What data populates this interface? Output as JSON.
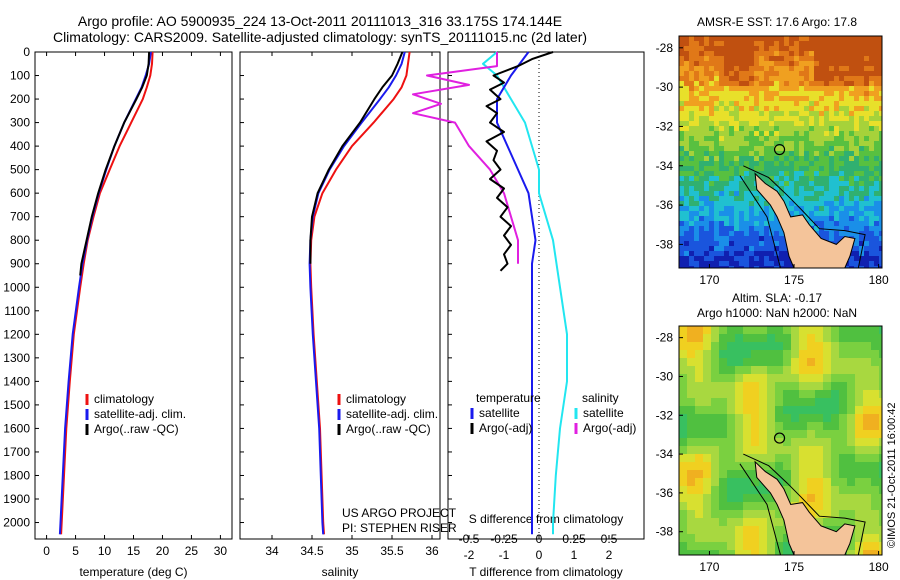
{
  "header": {
    "title_line1": "Argo profile: AO 5900935_224 13-Oct-2011 20111013_316 33.175S 174.144E",
    "title_line2": "Climatology: CARS2009. Satellite-adjusted climatology: synTS_20111015.nc (2d later)"
  },
  "colors": {
    "climatology": "#ee1111",
    "satellite": "#1a1aee",
    "argo": "#000000",
    "satellite_salinity": "#22e6f0",
    "argo_salinity": "#e020e0"
  },
  "chart_data": [
    {
      "type": "line",
      "id": "temperature",
      "xlabel": "temperature (deg C)",
      "ylabel": "",
      "xlim": [
        -2,
        32
      ],
      "ylim": [
        2070,
        0
      ],
      "xticks": [
        0,
        5,
        10,
        15,
        20,
        25,
        30
      ],
      "yticks": [
        0,
        100,
        200,
        300,
        400,
        500,
        600,
        700,
        800,
        900,
        1000,
        1100,
        1200,
        1300,
        1400,
        1500,
        1600,
        1700,
        1800,
        1900,
        2000
      ],
      "legend": [
        "climatology",
        "satellite-adj. clim.",
        "Argo(..raw -QC)"
      ],
      "series": [
        {
          "name": "climatology",
          "color": "#ee1111",
          "depth": [
            0,
            50,
            100,
            150,
            200,
            300,
            400,
            500,
            600,
            700,
            800,
            900,
            1000,
            1200,
            1400,
            1600,
            1800,
            2000,
            2050
          ],
          "values": [
            18.3,
            18.2,
            17.9,
            17.3,
            16.6,
            14.6,
            12.6,
            10.9,
            9.2,
            8.1,
            7.1,
            6.4,
            5.8,
            4.7,
            4.0,
            3.4,
            3.0,
            2.6,
            2.5
          ]
        },
        {
          "name": "satellite-adj. clim.",
          "color": "#1a1aee",
          "depth": [
            0,
            50,
            100,
            150,
            200,
            300,
            400,
            500,
            600,
            700,
            800,
            900,
            1000,
            1200,
            1400,
            1600,
            1800,
            2000,
            2050
          ],
          "values": [
            18.0,
            17.7,
            17.1,
            16.4,
            15.4,
            13.4,
            11.7,
            10.3,
            9.0,
            7.9,
            7.0,
            6.2,
            5.6,
            4.5,
            3.8,
            3.2,
            2.8,
            2.4,
            2.3
          ]
        },
        {
          "name": "Argo(..raw -QC)",
          "color": "#000000",
          "depth": [
            0,
            50,
            100,
            150,
            200,
            300,
            400,
            500,
            600,
            700,
            800,
            900,
            950
          ],
          "values": [
            17.7,
            17.6,
            17.3,
            16.5,
            15.5,
            13.4,
            11.7,
            10.2,
            8.9,
            7.8,
            6.9,
            6.0,
            5.8
          ]
        }
      ]
    },
    {
      "type": "line",
      "id": "salinity",
      "xlabel": "salinity",
      "ylabel": "",
      "xlim": [
        33.6,
        36.1
      ],
      "ylim": [
        2070,
        0
      ],
      "xticks": [
        34,
        34.5,
        35,
        35.5,
        36
      ],
      "xticklabels": [
        "34",
        "34.5",
        "35",
        "35.5",
        "36"
      ],
      "legend": [
        "climatology",
        "satellite-adj. clim.",
        "Argo(..raw -QC)"
      ],
      "annotation": [
        "US ARGO PROJECT",
        "PI: STEPHEN RISER"
      ],
      "series": [
        {
          "name": "climatology",
          "color": "#ee1111",
          "depth": [
            0,
            50,
            100,
            150,
            200,
            300,
            400,
            500,
            600,
            700,
            800,
            900,
            1000,
            1200,
            1400,
            1600,
            1800,
            2000,
            2050
          ],
          "values": [
            35.72,
            35.7,
            35.68,
            35.62,
            35.52,
            35.27,
            35.0,
            34.8,
            34.63,
            34.53,
            34.49,
            34.48,
            34.49,
            34.52,
            34.56,
            34.6,
            34.62,
            34.64,
            34.65
          ]
        },
        {
          "name": "satellite-adj. clim.",
          "color": "#1a1aee",
          "depth": [
            0,
            50,
            100,
            150,
            200,
            300,
            400,
            500,
            600,
            700,
            800,
            900,
            1000,
            1200,
            1400,
            1600,
            1800,
            2000,
            2050
          ],
          "values": [
            35.66,
            35.62,
            35.55,
            35.46,
            35.35,
            35.12,
            34.9,
            34.72,
            34.58,
            34.51,
            34.48,
            34.47,
            34.48,
            34.51,
            34.55,
            34.59,
            34.61,
            34.63,
            34.64
          ]
        },
        {
          "name": "Argo(..raw -QC)",
          "color": "#000000",
          "depth": [
            0,
            50,
            100,
            150,
            200,
            300,
            400,
            500,
            600,
            700,
            800,
            900
          ],
          "values": [
            35.63,
            35.57,
            35.5,
            35.38,
            35.28,
            35.1,
            34.88,
            34.71,
            34.57,
            34.5,
            34.48,
            34.48
          ]
        }
      ]
    },
    {
      "type": "line",
      "id": "difference",
      "xlabel": "T difference from climatology",
      "xlabel_top": "S difference from climatology",
      "xlim": [
        -2.6,
        3.0
      ],
      "ylim": [
        2070,
        0
      ],
      "xticks": [
        -2,
        -1,
        0,
        1,
        2
      ],
      "sticks": [
        -0.5,
        -0.25,
        0,
        0.25,
        0.5
      ],
      "sticklabels": [
        "-0.5",
        "-0.25",
        "0",
        "0.25",
        "0.5"
      ],
      "legend_headers": [
        "temperature",
        "salinity"
      ],
      "legend": [
        "satellite",
        "Argo(-adj)",
        "satellite",
        "Argo(-adj)"
      ],
      "series": [
        {
          "name": "satellite",
          "color": "#1a1aee",
          "depth": [
            0,
            40,
            100,
            200,
            300,
            400,
            500,
            600,
            700,
            800,
            900,
            1000,
            1200,
            1400,
            1600,
            1800,
            2000,
            2050
          ],
          "values": [
            -0.3,
            -0.5,
            -0.8,
            -1.2,
            -1.2,
            -0.9,
            -0.6,
            -0.3,
            -0.2,
            -0.1,
            -0.2,
            -0.2,
            -0.2,
            -0.2,
            -0.2,
            -0.2,
            -0.2,
            -0.2
          ]
        },
        {
          "name": "Argo(-adj)",
          "color": "#000000",
          "depth": [
            0,
            30,
            60,
            100,
            130,
            160,
            200,
            230,
            260,
            300,
            340,
            380,
            420,
            460,
            500,
            540,
            580,
            620,
            660,
            700,
            740,
            780,
            820,
            860,
            900,
            930
          ],
          "values": [
            0.4,
            -0.2,
            -0.6,
            -1.3,
            -1.0,
            -1.4,
            -1.1,
            -1.5,
            -1.2,
            -1.4,
            -1.0,
            -1.5,
            -1.2,
            -1.3,
            -1.1,
            -1.4,
            -1.0,
            -1.2,
            -0.9,
            -1.1,
            -0.8,
            -1.0,
            -0.8,
            -1.0,
            -0.9,
            -1.1
          ]
        },
        {
          "name": "satellite",
          "color": "#22e6f0",
          "depth": [
            0,
            50,
            100,
            200,
            300,
            400,
            500,
            600,
            800,
            1000,
            1200,
            1400,
            1600,
            1800,
            2000,
            2050
          ],
          "values": [
            -0.3,
            -0.4,
            -0.3,
            -0.2,
            -0.1,
            -0.05,
            0.0,
            0.0,
            0.1,
            0.15,
            0.2,
            0.2,
            0.15,
            0.12,
            0.1,
            0.1
          ]
        },
        {
          "name": "Argo(-adj)",
          "color": "#e020e0",
          "depth": [
            0,
            60,
            100,
            140,
            180,
            220,
            260,
            300,
            400,
            500,
            600,
            700,
            800,
            900
          ],
          "values": [
            -0.3,
            -0.3,
            -0.8,
            -0.5,
            -0.9,
            -0.7,
            -0.9,
            -0.6,
            -0.5,
            -0.35,
            -0.25,
            -0.2,
            -0.15,
            -0.15
          ]
        }
      ]
    },
    {
      "type": "heatmap",
      "id": "sst_map",
      "title": "AMSR-E SST: 17.6 Argo: 17.8",
      "xticks": [
        170,
        175,
        180
      ],
      "yticks": [
        -28,
        -30,
        -32,
        -34,
        -36,
        -38
      ],
      "xlim": [
        168.2,
        180.2
      ],
      "ylim": [
        -39.2,
        -27.4
      ],
      "marker": {
        "lon": 174.144,
        "lat": -33.175
      }
    },
    {
      "type": "heatmap",
      "id": "sla_map",
      "title_line1": "Altim. SLA: -0.17",
      "title_line2": "Argo h1000: NaN h2000: NaN",
      "xticks": [
        170,
        175,
        180
      ],
      "yticks": [
        -28,
        -30,
        -32,
        -34,
        -36,
        -38
      ],
      "xlim": [
        168.2,
        180.2
      ],
      "ylim": [
        -39.2,
        -27.4
      ],
      "marker": {
        "lon": 174.144,
        "lat": -33.175
      }
    }
  ],
  "footer": {
    "stamp": "©IMOS 21-Oct-2011 16:00:42"
  }
}
